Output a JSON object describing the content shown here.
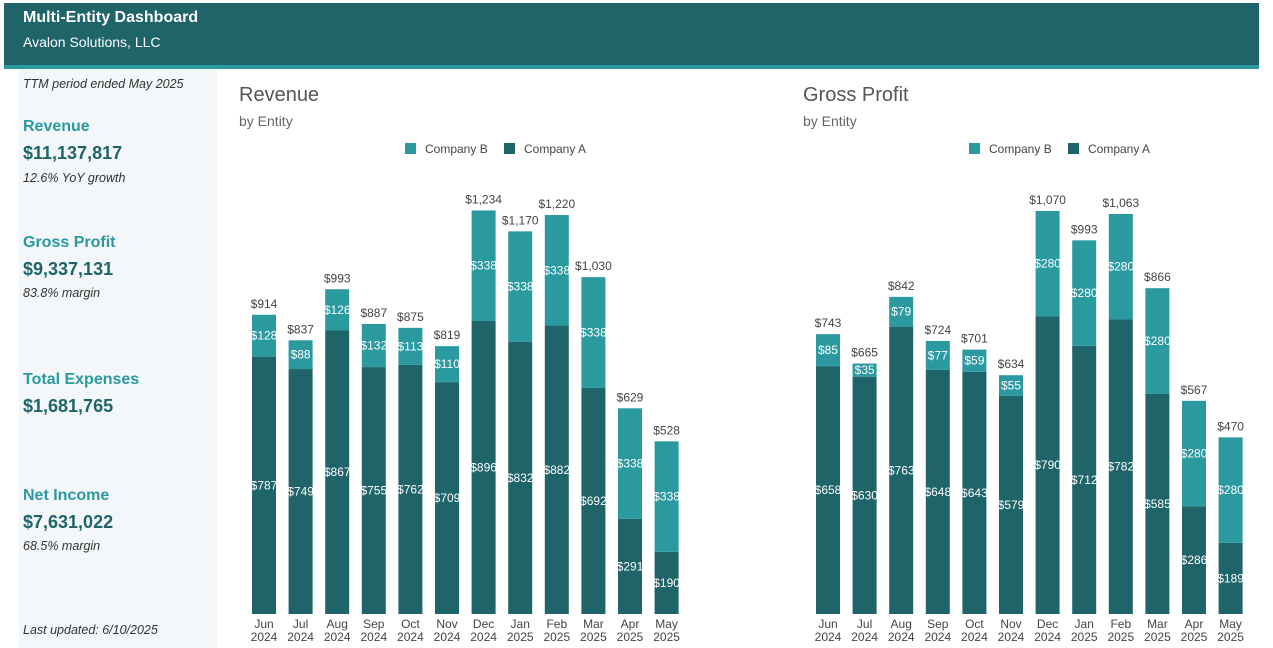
{
  "header": {
    "title": "Multi-Entity Dashboard",
    "subtitle": "Avalon Solutions, LLC"
  },
  "sidebar": {
    "period": "TTM period ended May 2025",
    "kpis": [
      {
        "label": "Revenue",
        "value": "$11,137,817",
        "note": "12.6% YoY growth"
      },
      {
        "label": "Gross Profit",
        "value": "$9,337,131",
        "note": "83.8% margin"
      },
      {
        "label": "Total Expenses",
        "value": "$1,681,765",
        "note": ""
      },
      {
        "label": "Net Income",
        "value": "$7,631,022",
        "note": "68.5% margin"
      }
    ],
    "updated": "Last updated: 6/10/2025"
  },
  "colors": {
    "company_a": "#1e6468",
    "company_b": "#2a9aa0",
    "header_bg": "#1e6468"
  },
  "chart_data": [
    {
      "type": "bar",
      "stacked": true,
      "title": "Revenue",
      "subtitle": "by Entity",
      "legend": [
        "Company B",
        "Company A"
      ],
      "legend_position": "top",
      "categories": [
        [
          "Jun",
          "2024"
        ],
        [
          "Jul",
          "2024"
        ],
        [
          "Aug",
          "2024"
        ],
        [
          "Sep",
          "2024"
        ],
        [
          "Oct",
          "2024"
        ],
        [
          "Nov",
          "2024"
        ],
        [
          "Dec",
          "2024"
        ],
        [
          "Jan",
          "2025"
        ],
        [
          "Feb",
          "2025"
        ],
        [
          "Mar",
          "2025"
        ],
        [
          "Apr",
          "2025"
        ],
        [
          "May",
          "2025"
        ]
      ],
      "series": [
        {
          "name": "Company A",
          "values": [
            787,
            749,
            867,
            755,
            762,
            709,
            896,
            832,
            882,
            692,
            291,
            190
          ],
          "labels": [
            "$787",
            "$749",
            "$867",
            "$755",
            "$762",
            "$709",
            "$896",
            "$832",
            "$882",
            "$692",
            "$291",
            "$190"
          ]
        },
        {
          "name": "Company B",
          "values": [
            128,
            88,
            126,
            132,
            113,
            110,
            338,
            338,
            338,
            338,
            338,
            338
          ],
          "labels": [
            "$128",
            "$88",
            "$126",
            "$132",
            "$113",
            "$110",
            "$338",
            "$338",
            "$338",
            "$338",
            "$338",
            "$338"
          ]
        }
      ],
      "totals": [
        914,
        837,
        993,
        887,
        875,
        819,
        1234,
        1170,
        1220,
        1030,
        629,
        528
      ],
      "total_labels": [
        "$914",
        "$837",
        "$993",
        "$887",
        "$875",
        "$819",
        "$1,234",
        "$1,170",
        "$1,220",
        "$1,030",
        "$629",
        "$528"
      ],
      "ylim": [
        0,
        1480
      ]
    },
    {
      "type": "bar",
      "stacked": true,
      "title": "Gross Profit",
      "subtitle": "by Entity",
      "legend": [
        "Company B",
        "Company A"
      ],
      "legend_position": "top",
      "categories": [
        [
          "Jun",
          "2024"
        ],
        [
          "Jul",
          "2024"
        ],
        [
          "Aug",
          "2024"
        ],
        [
          "Sep",
          "2024"
        ],
        [
          "Oct",
          "2024"
        ],
        [
          "Nov",
          "2024"
        ],
        [
          "Dec",
          "2024"
        ],
        [
          "Jan",
          "2025"
        ],
        [
          "Feb",
          "2025"
        ],
        [
          "Mar",
          "2025"
        ],
        [
          "Apr",
          "2025"
        ],
        [
          "May",
          "2025"
        ]
      ],
      "series": [
        {
          "name": "Company A",
          "values": [
            658,
            630,
            763,
            648,
            643,
            579,
            790,
            712,
            782,
            585,
            286,
            189
          ],
          "labels": [
            "$658",
            "$630",
            "$763",
            "$648",
            "$643",
            "$579",
            "$790",
            "$712",
            "$782",
            "$585",
            "$286",
            "$189"
          ]
        },
        {
          "name": "Company B",
          "values": [
            85,
            35,
            79,
            77,
            59,
            55,
            280,
            280,
            280,
            280,
            280,
            280
          ],
          "labels": [
            "$85",
            "$35",
            "$79",
            "$77",
            "$59",
            "$55",
            "$280",
            "$280",
            "$280",
            "$280",
            "$280",
            "$280"
          ]
        }
      ],
      "totals": [
        743,
        665,
        842,
        724,
        701,
        634,
        1070,
        993,
        1063,
        866,
        567,
        470
      ],
      "total_labels": [
        "$743",
        "$665",
        "$842",
        "$724",
        "$701",
        "$634",
        "$1,070",
        "$993",
        "$1,063",
        "$866",
        "$567",
        "$470"
      ],
      "ylim": [
        0,
        1285
      ]
    }
  ]
}
